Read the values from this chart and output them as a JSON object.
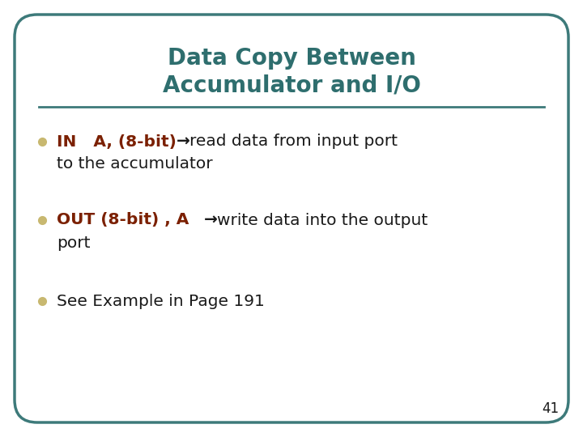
{
  "title_line1": "Data Copy Between",
  "title_line2": "Accumulator and I/O",
  "title_color": "#2E6E6E",
  "bg_color": "#FFFFFF",
  "border_color": "#3D7A7A",
  "line_color": "#3D7A7A",
  "bullet_color": "#C8B870",
  "dark_red": "#7B2000",
  "black": "#1A1A1A",
  "page_number": "41",
  "title_fontsize": 20,
  "body_fontsize": 14.5,
  "bullet1_red": "IN   A, (8-bit)",
  "bullet1_rest": " read data from input port",
  "bullet1_line2": "to the accumulator",
  "bullet2_red": "OUT (8-bit) , A",
  "bullet2_rest": " write data into the output",
  "bullet2_line2": "port",
  "bullet3": "See Example in Page 191"
}
